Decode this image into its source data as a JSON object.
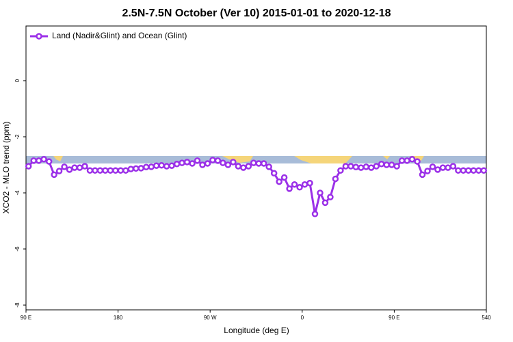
{
  "chart_data": {
    "type": "line",
    "title": "2.5N-7.5N October (Ver 10)   2015-01-01 to 2020-12-18",
    "x_label": "Longitude (deg E)",
    "y_label": "XCO2 - MLO trend (ppm)",
    "x": [
      92.5,
      97.5,
      102.5,
      107.5,
      112.5,
      117.5,
      122.5,
      127.5,
      132.5,
      137.5,
      142.5,
      147.5,
      152.5,
      157.5,
      162.5,
      167.5,
      172.5,
      177.5,
      182.5,
      187.5,
      192.5,
      197.5,
      202.5,
      207.5,
      212.5,
      217.5,
      222.5,
      227.5,
      232.5,
      237.5,
      242.5,
      247.5,
      252.5,
      257.5,
      262.5,
      267.5,
      272.5,
      277.5,
      282.5,
      287.5,
      292.5,
      297.5,
      302.5,
      307.5,
      312.5,
      317.5,
      322.5,
      327.5,
      332.5,
      337.5,
      342.5,
      347.5,
      352.5,
      357.5,
      362.5,
      367.5,
      372.5,
      377.5,
      382.5,
      387.5,
      392.5,
      397.5,
      402.5,
      407.5,
      412.5,
      417.5,
      422.5,
      427.5,
      432.5,
      437.5,
      442.5,
      447.5,
      452.5,
      457.5,
      462.5,
      467.5,
      472.5,
      477.5,
      482.5,
      487.5,
      492.5,
      497.5,
      502.5,
      507.5,
      512.5,
      517.5,
      522.5,
      527.5,
      532.5,
      537.5
    ],
    "series": [
      {
        "name": "Land (Nadir&Glint) and Ocean (Glint)",
        "color": "#9b30e8",
        "values": [
          -3.05,
          -2.85,
          -2.85,
          -2.8,
          -2.88,
          -3.35,
          -3.22,
          -3.07,
          -3.17,
          -3.1,
          -3.1,
          -3.05,
          -3.2,
          -3.2,
          -3.2,
          -3.2,
          -3.2,
          -3.2,
          -3.2,
          -3.2,
          -3.15,
          -3.13,
          -3.12,
          -3.08,
          -3.07,
          -3.03,
          -3.02,
          -3.05,
          -3.03,
          -2.97,
          -2.93,
          -2.9,
          -2.95,
          -2.85,
          -3.0,
          -2.95,
          -2.83,
          -2.85,
          -2.93,
          -3.0,
          -2.9,
          -3.05,
          -3.1,
          -3.05,
          -2.93,
          -2.95,
          -2.95,
          -3.07,
          -3.3,
          -3.6,
          -3.45,
          -3.85,
          -3.7,
          -3.8,
          -3.7,
          -3.65,
          -4.75,
          -4.0,
          -4.35,
          -4.15,
          -3.5,
          -3.2,
          -3.05,
          -3.05,
          -3.08,
          -3.1,
          -3.07,
          -3.1,
          -3.05,
          -2.97,
          -3.0,
          -3.0,
          -3.05,
          -2.85,
          -2.85,
          -2.8,
          -2.88,
          -3.35,
          -3.22,
          -3.07,
          -3.17,
          -3.1,
          -3.1,
          -3.05,
          -3.2,
          -3.2,
          -3.2,
          -3.2,
          -3.2,
          -3.2
        ]
      }
    ],
    "xlim": [
      90,
      540
    ],
    "xticks": [
      {
        "value": 90,
        "label": "90 E"
      },
      180,
      {
        "value": 270,
        "label": "90 W"
      },
      {
        "value": 360,
        "label": "0"
      },
      {
        "value": 450,
        "label": "90 E"
      },
      540
    ],
    "ylim": [
      -8.17,
      1.95
    ],
    "yticks": [
      -8,
      -6,
      -4,
      -2,
      0
    ],
    "legend": "top-left"
  }
}
